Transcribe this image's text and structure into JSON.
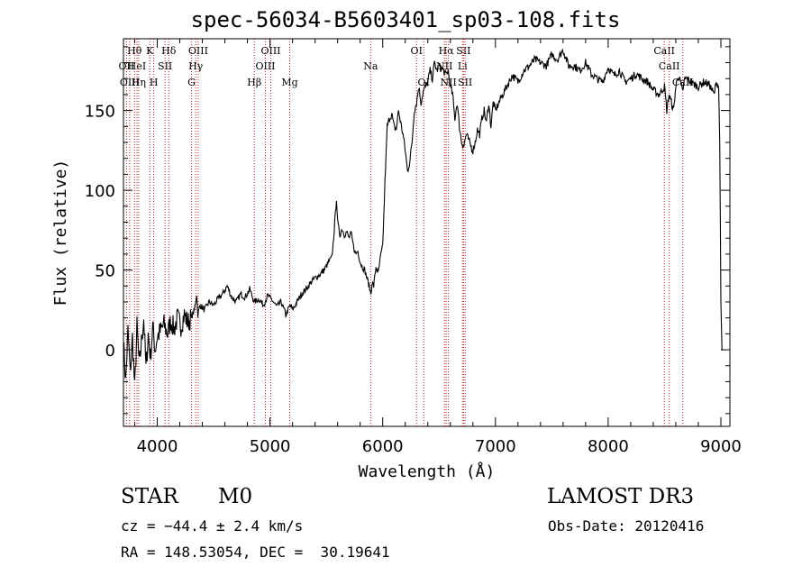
{
  "title": "spec-56034-B5603401_sp03-108.fits",
  "info": {
    "object_type": "STAR",
    "subclass": "M0",
    "survey": "LAMOST DR3",
    "cz": "cz = −44.4 ± 2.4 km/s",
    "obs_date": "Obs-Date: 20120416",
    "radec": "RA = 148.53054, DEC =  30.19641"
  },
  "colors": {
    "line": "#000000",
    "marker": "#b22222",
    "background": "#ffffff"
  },
  "chart_data": {
    "type": "line",
    "title": "spec-56034-B5603401_sp03-108.fits",
    "xlabel": "Wavelength (Å)",
    "ylabel": "Flux (relative)",
    "xlim": [
      3700,
      9080
    ],
    "ylim": [
      -48,
      195
    ],
    "xticks": [
      4000,
      5000,
      6000,
      7000,
      8000,
      9000
    ],
    "yticks": [
      0,
      50,
      100,
      150
    ],
    "series": [
      {
        "name": "flux",
        "x": [
          3700,
          3720,
          3740,
          3760,
          3780,
          3800,
          3820,
          3840,
          3860,
          3880,
          3900,
          3920,
          3940,
          3960,
          3980,
          4000,
          4030,
          4060,
          4090,
          4120,
          4150,
          4180,
          4210,
          4240,
          4270,
          4300,
          4330,
          4350,
          4360,
          4380,
          4420,
          4460,
          4500,
          4540,
          4580,
          4620,
          4660,
          4700,
          4740,
          4780,
          4820,
          4860,
          4900,
          4940,
          4980,
          5020,
          5060,
          5100,
          5140,
          5180,
          5200,
          5240,
          5280,
          5320,
          5360,
          5400,
          5440,
          5480,
          5520,
          5550,
          5570,
          5580,
          5590,
          5600,
          5620,
          5640,
          5660,
          5680,
          5700,
          5720,
          5740,
          5760,
          5780,
          5800,
          5820,
          5840,
          5860,
          5880,
          5895,
          5905,
          5920,
          5940,
          5960,
          5980,
          6000,
          6020,
          6040,
          6060,
          6080,
          6100,
          6120,
          6140,
          6160,
          6180,
          6200,
          6220,
          6240,
          6260,
          6280,
          6300,
          6320,
          6340,
          6360,
          6380,
          6400,
          6420,
          6440,
          6460,
          6480,
          6500,
          6520,
          6540,
          6560,
          6580,
          6600,
          6620,
          6640,
          6660,
          6680,
          6700,
          6720,
          6740,
          6760,
          6780,
          6800,
          6820,
          6840,
          6860,
          6880,
          6900,
          6920,
          6940,
          6960,
          6980,
          7000,
          7050,
          7100,
          7150,
          7200,
          7250,
          7300,
          7350,
          7400,
          7450,
          7500,
          7550,
          7600,
          7650,
          7700,
          7750,
          7800,
          7850,
          7900,
          7950,
          8000,
          8050,
          8100,
          8150,
          8200,
          8250,
          8300,
          8350,
          8400,
          8450,
          8500,
          8520,
          8540,
          8560,
          8580,
          8600,
          8620,
          8640,
          8660,
          8680,
          8700,
          8750,
          8800,
          8850,
          8900,
          8940,
          8960,
          8980,
          8990,
          9000,
          9010,
          9020
        ],
        "y": [
          5,
          -20,
          12,
          -15,
          8,
          -25,
          15,
          -10,
          5,
          20,
          -12,
          10,
          -5,
          15,
          0,
          8,
          12,
          16,
          10,
          18,
          13,
          20,
          15,
          22,
          17,
          20,
          25,
          35,
          22,
          28,
          25,
          30,
          28,
          32,
          35,
          40,
          33,
          30,
          35,
          33,
          38,
          30,
          32,
          28,
          34,
          31,
          27,
          30,
          22,
          28,
          25,
          30,
          35,
          38,
          42,
          45,
          47,
          50,
          55,
          58,
          75,
          85,
          95,
          80,
          72,
          76,
          72,
          74,
          70,
          73,
          65,
          60,
          62,
          55,
          52,
          50,
          45,
          40,
          35,
          42,
          40,
          52,
          48,
          58,
          65,
          105,
          140,
          145,
          148,
          140,
          138,
          150,
          142,
          135,
          125,
          112,
          118,
          130,
          150,
          155,
          165,
          155,
          162,
          165,
          168,
          175,
          170,
          180,
          175,
          178,
          176,
          175,
          172,
          175,
          165,
          160,
          145,
          155,
          140,
          130,
          128,
          135,
          132,
          128,
          125,
          130,
          138,
          135,
          145,
          150,
          142,
          155,
          140,
          155,
          150,
          158,
          165,
          172,
          168,
          175,
          178,
          182,
          180,
          178,
          185,
          182,
          188,
          178,
          178,
          175,
          180,
          173,
          170,
          168,
          177,
          172,
          175,
          168,
          170,
          173,
          170,
          168,
          163,
          160,
          165,
          150,
          160,
          155,
          150,
          165,
          172,
          168,
          162,
          170,
          170,
          167,
          165,
          168,
          166,
          160,
          168,
          165,
          130,
          30,
          0,
          0
        ]
      }
    ],
    "lines": [
      {
        "label": "Hθ",
        "wl": 3798,
        "row": 1
      },
      {
        "label": "OII",
        "wl": 3727,
        "row": 2
      },
      {
        "label": "OIII",
        "wl": 3755,
        "row": 3
      },
      {
        "label": "HeI",
        "wl": 3820,
        "row": 2
      },
      {
        "label": "Hη",
        "wl": 3835,
        "row": 3
      },
      {
        "label": "K",
        "wl": 3934,
        "row": 1
      },
      {
        "label": "H",
        "wl": 3969,
        "row": 3
      },
      {
        "label": "SII",
        "wl": 4069,
        "row": 2
      },
      {
        "label": "Hδ",
        "wl": 4102,
        "row": 1
      },
      {
        "label": "OIII",
        "wl": 4363,
        "row": 1
      },
      {
        "label": "Hγ",
        "wl": 4341,
        "row": 2
      },
      {
        "label": "G",
        "wl": 4304,
        "row": 3
      },
      {
        "label": "Hβ",
        "wl": 4861,
        "row": 3
      },
      {
        "label": "OIII",
        "wl": 4959,
        "row": 2
      },
      {
        "label": "OIII",
        "wl": 5007,
        "row": 1
      },
      {
        "label": "Mg",
        "wl": 5175,
        "row": 3
      },
      {
        "label": "Na",
        "wl": 5893,
        "row": 2
      },
      {
        "label": "OI",
        "wl": 6300,
        "row": 1
      },
      {
        "label": "OI",
        "wl": 6364,
        "row": 3
      },
      {
        "label": "Hα",
        "wl": 6563,
        "row": 1
      },
      {
        "label": "NII",
        "wl": 6548,
        "row": 2
      },
      {
        "label": "NII",
        "wl": 6583,
        "row": 3
      },
      {
        "label": "Li",
        "wl": 6708,
        "row": 2
      },
      {
        "label": "SII",
        "wl": 6717,
        "row": 1
      },
      {
        "label": "SII",
        "wl": 6731,
        "row": 3
      },
      {
        "label": "CaII",
        "wl": 8498,
        "row": 1
      },
      {
        "label": "CaII",
        "wl": 8542,
        "row": 2
      },
      {
        "label": "CaII",
        "wl": 8662,
        "row": 3
      }
    ]
  }
}
